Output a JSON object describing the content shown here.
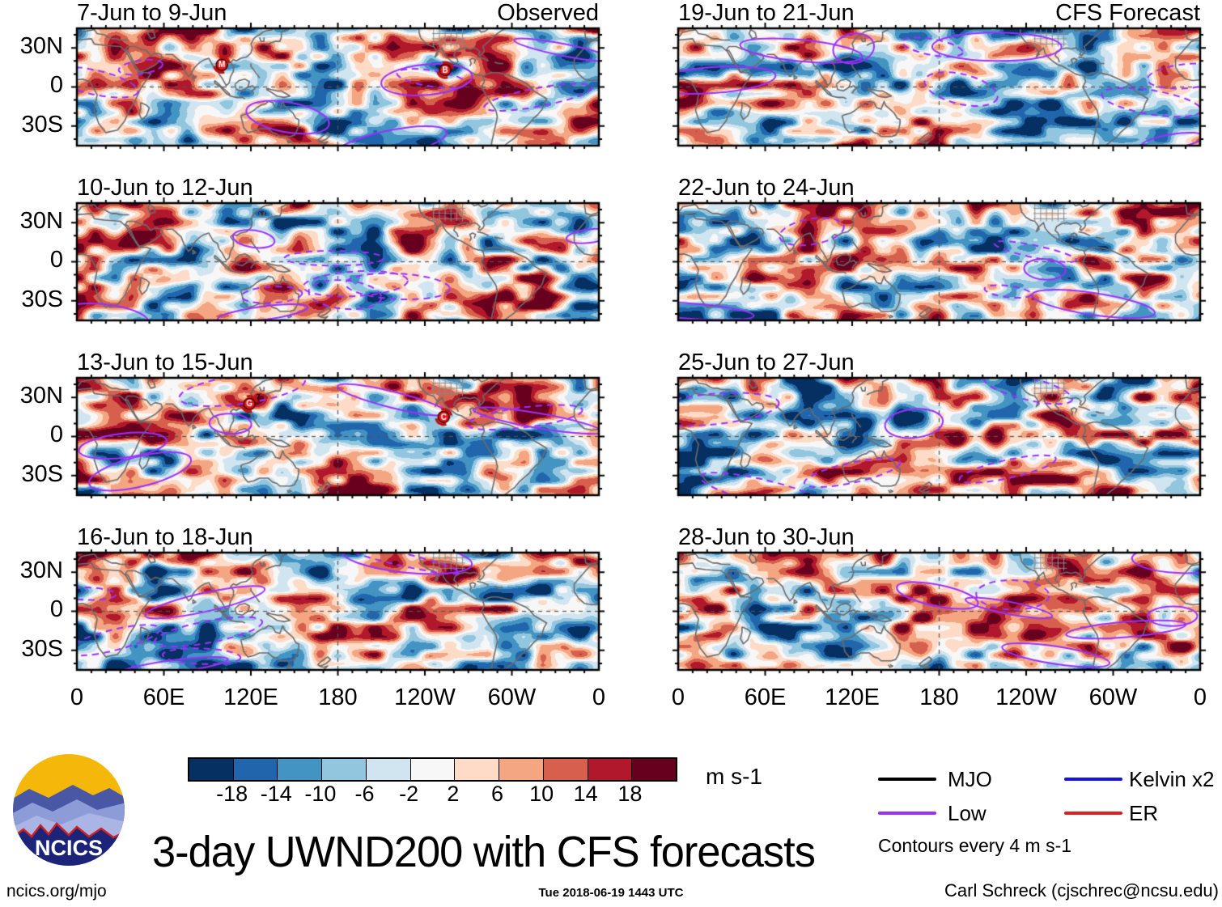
{
  "title": "3-day UWND200 with CFS forecasts",
  "figure": {
    "columns": [
      {
        "label": "Observed"
      },
      {
        "label": "CFS Forecast"
      }
    ],
    "panels": [
      {
        "title": "7-Jun to 9-Jun",
        "column": "Observed",
        "storms": [
          {
            "label": "M",
            "lon": 100,
            "lat": 17
          },
          {
            "label": "B",
            "lon": 254,
            "lat": 13
          }
        ]
      },
      {
        "title": "10-Jun to 12-Jun",
        "column": "Observed",
        "storms": []
      },
      {
        "title": "13-Jun to 15-Jun",
        "column": "Observed",
        "storms": [
          {
            "label": "G",
            "number": "7",
            "lon": 119,
            "lat": 25
          },
          {
            "label": "C",
            "lon": 253,
            "lat": 15
          }
        ]
      },
      {
        "title": "16-Jun to 18-Jun",
        "column": "Observed",
        "storms": []
      },
      {
        "title": "19-Jun to 21-Jun",
        "column": "CFS Forecast",
        "storms": []
      },
      {
        "title": "22-Jun to 24-Jun",
        "column": "CFS Forecast",
        "storms": []
      },
      {
        "title": "25-Jun to 27-Jun",
        "column": "CFS Forecast",
        "storms": []
      },
      {
        "title": "28-Jun to 30-Jun",
        "column": "CFS Forecast",
        "storms": []
      }
    ],
    "y_ticks": [
      "30N",
      "0",
      "30S"
    ],
    "x_ticks": [
      "0",
      "60E",
      "120E",
      "180",
      "120W",
      "60W",
      "0"
    ]
  },
  "colorbar": {
    "values": [
      -18,
      -14,
      -10,
      -6,
      -2,
      2,
      6,
      10,
      14,
      18
    ],
    "colors": [
      "#053061",
      "#2166ac",
      "#4393c3",
      "#92c5de",
      "#d1e5f0",
      "#f7f7f7",
      "#fddbc7",
      "#f4a582",
      "#d6604d",
      "#b2182b",
      "#67001f"
    ],
    "unit": "m s-1"
  },
  "legend": {
    "items": [
      {
        "label": "MJO",
        "color": "#000000"
      },
      {
        "label": "Low",
        "color": "#9b30ff"
      },
      {
        "label": "Kelvin x2",
        "color": "#1414e6"
      },
      {
        "label": "ER",
        "color": "#e02020"
      }
    ],
    "note": "Contours every 4 m s-1"
  },
  "branding": {
    "logo_text": "NCICS",
    "site": "ncics.org/mjo"
  },
  "footer": {
    "timestamp": "Tue 2018-06-19 1443 UTC",
    "credit": "Carl Schreck (cjschrec@ncsu.edu)"
  },
  "chart_data": {
    "type": "heatmap",
    "title": "3-day UWND200 with CFS forecasts",
    "variable": "200-hPa zonal wind anomaly (UWND200), 3-day means",
    "units": "m s-1",
    "layout": "2 columns x 4 rows of world maps; left column Observed, right column CFS Forecast",
    "x": {
      "label": "longitude",
      "ticks": [
        "0",
        "60E",
        "120E",
        "180",
        "120W",
        "60W",
        "0"
      ],
      "range_deg": [
        0,
        360
      ],
      "gridline": "dashed meridian at 180"
    },
    "y": {
      "label": "latitude",
      "ticks": [
        "30N",
        "0",
        "30S"
      ],
      "range_deg": [
        -45,
        45
      ],
      "gridline": "dashed equator"
    },
    "color_levels": [
      -18,
      -14,
      -10,
      -6,
      -2,
      2,
      6,
      10,
      14,
      18
    ],
    "colors": [
      "#053061",
      "#2166ac",
      "#4393c3",
      "#92c5de",
      "#d1e5f0",
      "#f7f7f7",
      "#fddbc7",
      "#f4a582",
      "#d6604d",
      "#b2182b",
      "#67001f"
    ],
    "contour_interval": "4 m s-1",
    "wave_contour_series": [
      "MJO",
      "Low",
      "Kelvin x2",
      "ER"
    ],
    "panels": [
      {
        "label": "7-Jun to 9-Jun",
        "kind": "Observed",
        "storm_symbols": [
          "M",
          "B"
        ]
      },
      {
        "label": "10-Jun to 12-Jun",
        "kind": "Observed",
        "storm_symbols": []
      },
      {
        "label": "13-Jun to 15-Jun",
        "kind": "Observed",
        "storm_symbols": [
          "G7",
          "C"
        ]
      },
      {
        "label": "16-Jun to 18-Jun",
        "kind": "Observed",
        "storm_symbols": []
      },
      {
        "label": "19-Jun to 21-Jun",
        "kind": "CFS Forecast",
        "storm_symbols": []
      },
      {
        "label": "22-Jun to 24-Jun",
        "kind": "CFS Forecast",
        "storm_symbols": []
      },
      {
        "label": "25-Jun to 27-Jun",
        "kind": "CFS Forecast",
        "storm_symbols": []
      },
      {
        "label": "28-Jun to 30-Jun",
        "kind": "CFS Forecast",
        "storm_symbols": []
      }
    ]
  }
}
